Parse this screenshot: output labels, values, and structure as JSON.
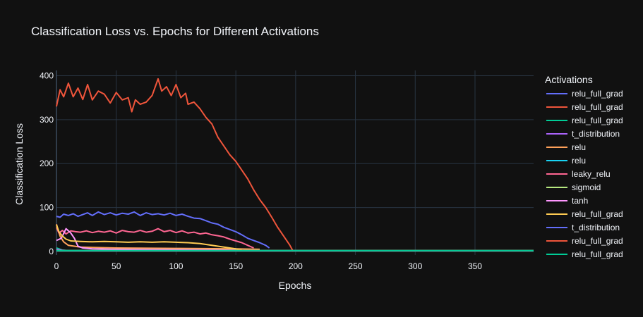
{
  "chart_data": {
    "type": "line",
    "title": "Classification Loss vs. Epochs for Different Activations",
    "xlabel": "Epochs",
    "ylabel": "Classification Loss",
    "xlim": [
      0,
      399
    ],
    "ylim": [
      -8,
      412
    ],
    "xticks": [
      0,
      50,
      100,
      150,
      200,
      250,
      300,
      350
    ],
    "yticks": [
      0,
      100,
      200,
      300,
      400
    ],
    "grid": true,
    "legend_title": "Activations",
    "legend_position": "right",
    "series": [
      {
        "name": "relu_full_grad",
        "color": "#636efa",
        "x": [
          0,
          400
        ],
        "y": [
          2,
          2
        ]
      },
      {
        "name": "relu_full_grad",
        "color": "#ef553b",
        "x": [
          0,
          3,
          6,
          10,
          14,
          18,
          22,
          26,
          30,
          35,
          40,
          45,
          50,
          55,
          60,
          63,
          66,
          70,
          75,
          80,
          85,
          88,
          92,
          96,
          100,
          104,
          108,
          110,
          115,
          120,
          125,
          130,
          135,
          140,
          145,
          150,
          155,
          160,
          165,
          170,
          175,
          180,
          185,
          190,
          195,
          198
        ],
        "y": [
          330,
          368,
          352,
          383,
          352,
          372,
          346,
          380,
          345,
          365,
          358,
          338,
          362,
          345,
          350,
          318,
          345,
          335,
          340,
          355,
          393,
          365,
          375,
          355,
          380,
          350,
          360,
          335,
          340,
          325,
          305,
          290,
          260,
          240,
          220,
          205,
          185,
          165,
          140,
          118,
          100,
          78,
          55,
          35,
          15,
          0
        ]
      },
      {
        "name": "relu_full_grad",
        "color": "#00cc96",
        "x": [
          0,
          5,
          10,
          100,
          200,
          300,
          400
        ],
        "y": [
          8,
          3,
          2,
          2,
          2,
          2,
          2
        ]
      },
      {
        "name": "t_distribution",
        "color": "#ab63fa",
        "x": [
          0,
          5,
          10,
          100,
          200,
          300,
          400
        ],
        "y": [
          5,
          3,
          2,
          2,
          2,
          2,
          2
        ]
      },
      {
        "name": "relu",
        "color": "#ffa15a",
        "x": [
          0,
          3,
          6,
          10,
          20,
          50,
          100,
          150,
          170
        ],
        "y": [
          62,
          35,
          22,
          14,
          10,
          8,
          7,
          6,
          5
        ]
      },
      {
        "name": "relu",
        "color": "#19d3f3",
        "x": [
          0,
          400
        ],
        "y": [
          2,
          2
        ]
      },
      {
        "name": "leaky_relu",
        "color": "#ff6692",
        "x": [
          0,
          2,
          5,
          8,
          12,
          16,
          20,
          25,
          30,
          35,
          40,
          45,
          50,
          55,
          60,
          65,
          70,
          75,
          80,
          85,
          90,
          95,
          100,
          105,
          110,
          115,
          120,
          125,
          130,
          135,
          140,
          145,
          150,
          155,
          160,
          165
        ],
        "y": [
          55,
          42,
          48,
          40,
          47,
          45,
          44,
          47,
          43,
          46,
          44,
          47,
          42,
          48,
          45,
          44,
          48,
          44,
          46,
          52,
          45,
          48,
          43,
          47,
          42,
          44,
          40,
          42,
          38,
          36,
          33,
          28,
          24,
          20,
          14,
          8
        ]
      },
      {
        "name": "sigmoid",
        "color": "#b6e880",
        "x": [
          0,
          400
        ],
        "y": [
          2,
          2
        ]
      },
      {
        "name": "tanh",
        "color": "#ff97ff",
        "x": [
          0,
          4,
          8,
          12,
          15,
          18,
          22,
          30,
          50,
          100,
          150
        ],
        "y": [
          25,
          30,
          52,
          42,
          30,
          12,
          8,
          6,
          5,
          4,
          3
        ]
      },
      {
        "name": "relu_full_grad",
        "color": "#fecb52",
        "x": [
          0,
          2,
          5,
          8,
          12,
          20,
          30,
          40,
          50,
          60,
          70,
          80,
          90,
          100,
          110,
          120,
          130,
          140,
          150,
          155
        ],
        "y": [
          60,
          45,
          35,
          28,
          24,
          23,
          22,
          23,
          22,
          21,
          22,
          21,
          22,
          21,
          20,
          18,
          14,
          10,
          6,
          3
        ]
      },
      {
        "name": "t_distribution",
        "color": "#636efa",
        "x": [
          0,
          3,
          6,
          10,
          14,
          18,
          22,
          26,
          30,
          35,
          40,
          45,
          50,
          55,
          60,
          65,
          70,
          75,
          80,
          85,
          90,
          95,
          100,
          105,
          110,
          115,
          120,
          125,
          130,
          135,
          140,
          145,
          150,
          155,
          160,
          165,
          170,
          175,
          178
        ],
        "y": [
          80,
          78,
          85,
          82,
          86,
          80,
          84,
          88,
          82,
          90,
          84,
          88,
          83,
          87,
          85,
          90,
          82,
          88,
          84,
          86,
          83,
          87,
          82,
          85,
          80,
          76,
          75,
          70,
          65,
          62,
          55,
          50,
          45,
          38,
          30,
          25,
          20,
          14,
          8
        ]
      },
      {
        "name": "relu_full_grad",
        "color": "#ef553b",
        "x": [
          0,
          400
        ],
        "y": [
          2,
          2
        ]
      },
      {
        "name": "relu_full_grad",
        "color": "#00cc96",
        "x": [
          0,
          400
        ],
        "y": [
          2,
          2
        ]
      }
    ]
  }
}
